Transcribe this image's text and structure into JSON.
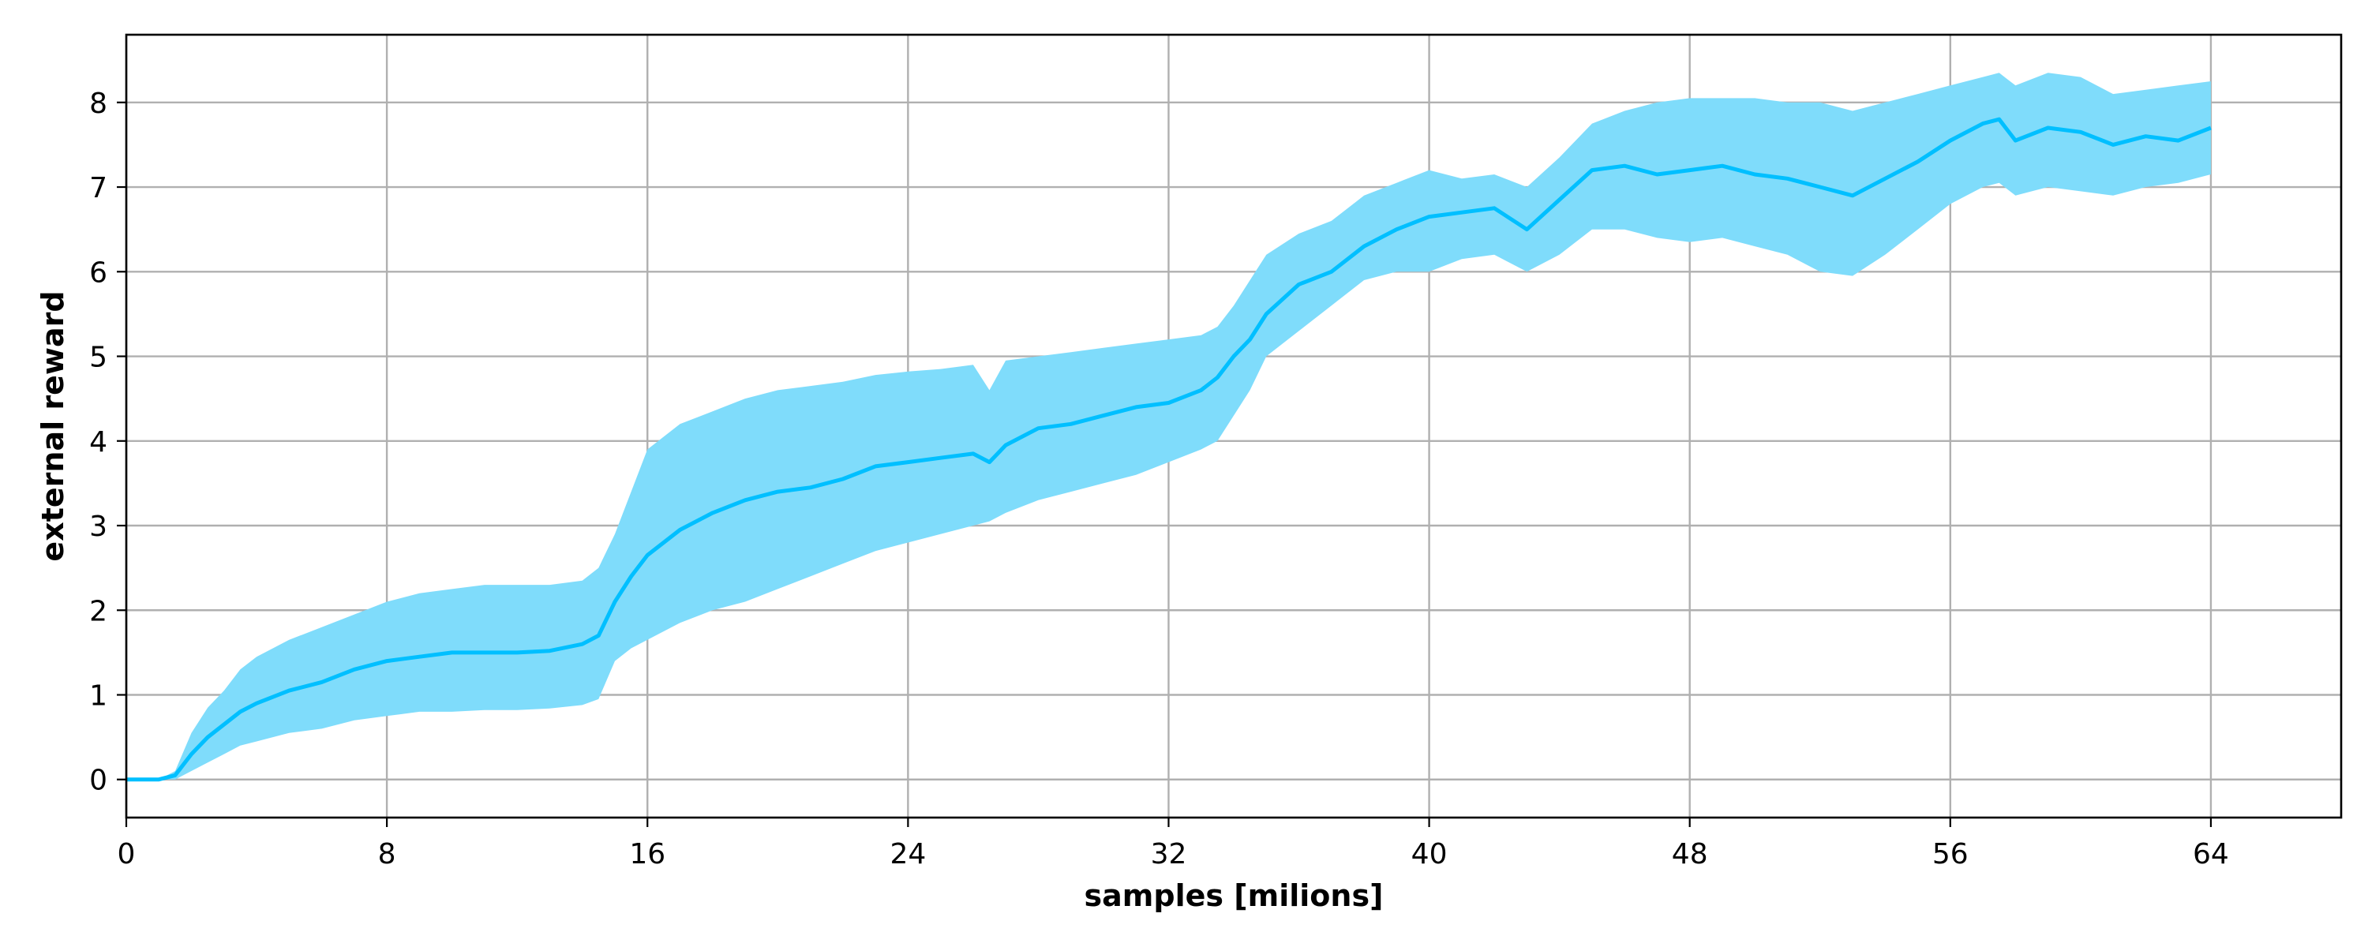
{
  "chart_data": {
    "type": "area",
    "xlabel": "samples [milions]",
    "ylabel": "external reward",
    "xlim": [
      0,
      68
    ],
    "ylim": [
      -0.45,
      8.8
    ],
    "xticks": [
      0,
      8,
      16,
      24,
      32,
      40,
      48,
      56,
      64
    ],
    "yticks": [
      0,
      1,
      2,
      3,
      4,
      5,
      6,
      7,
      8
    ],
    "grid": true,
    "line_color": "#00bfff",
    "band_color": "#7fdcfb",
    "series": [
      {
        "x": [
          0,
          1,
          1.5,
          2,
          2.5,
          3,
          3.5,
          4,
          5,
          6,
          7,
          8,
          9,
          10,
          11,
          12,
          13,
          14,
          14.5,
          15,
          15.5,
          16,
          17,
          18,
          19,
          20,
          21,
          22,
          23,
          24,
          25,
          26,
          26.5,
          27,
          28,
          29,
          30,
          31,
          32,
          33,
          33.5,
          34,
          34.5,
          35,
          36,
          37,
          38,
          39,
          40,
          41,
          42,
          43,
          44,
          45,
          46,
          47,
          48,
          49,
          50,
          51,
          52,
          53,
          54,
          55,
          56,
          57,
          57.5,
          58,
          59,
          60,
          61,
          62,
          63,
          64
        ],
        "mean": [
          0,
          0,
          0.05,
          0.3,
          0.5,
          0.65,
          0.8,
          0.9,
          1.05,
          1.15,
          1.3,
          1.4,
          1.45,
          1.5,
          1.5,
          1.5,
          1.52,
          1.6,
          1.7,
          2.1,
          2.4,
          2.65,
          2.95,
          3.15,
          3.3,
          3.4,
          3.45,
          3.55,
          3.7,
          3.75,
          3.8,
          3.85,
          3.75,
          3.95,
          4.15,
          4.2,
          4.3,
          4.4,
          4.45,
          4.6,
          4.75,
          5.0,
          5.2,
          5.5,
          5.85,
          6.0,
          6.3,
          6.5,
          6.65,
          6.7,
          6.75,
          6.5,
          6.85,
          7.2,
          7.25,
          7.15,
          7.2,
          7.25,
          7.15,
          7.1,
          7.0,
          6.9,
          7.1,
          7.3,
          7.55,
          7.75,
          7.8,
          7.55,
          7.7,
          7.65,
          7.5,
          7.6,
          7.55,
          7.7
        ],
        "lower": [
          0,
          0,
          0,
          0.1,
          0.2,
          0.3,
          0.4,
          0.45,
          0.55,
          0.6,
          0.7,
          0.75,
          0.8,
          0.8,
          0.82,
          0.82,
          0.84,
          0.88,
          0.95,
          1.4,
          1.55,
          1.65,
          1.85,
          2.0,
          2.1,
          2.25,
          2.4,
          2.55,
          2.7,
          2.8,
          2.9,
          3.0,
          3.05,
          3.15,
          3.3,
          3.4,
          3.5,
          3.6,
          3.75,
          3.9,
          4.0,
          4.3,
          4.6,
          5.0,
          5.3,
          5.6,
          5.9,
          6.0,
          6.0,
          6.15,
          6.2,
          6.0,
          6.2,
          6.5,
          6.5,
          6.4,
          6.35,
          6.4,
          6.3,
          6.2,
          6.0,
          5.95,
          6.2,
          6.5,
          6.8,
          7.0,
          7.05,
          6.9,
          7.0,
          6.95,
          6.9,
          7.0,
          7.05,
          7.15
        ],
        "upper": [
          0,
          0,
          0.1,
          0.55,
          0.85,
          1.05,
          1.3,
          1.45,
          1.65,
          1.8,
          1.95,
          2.1,
          2.2,
          2.25,
          2.3,
          2.3,
          2.3,
          2.35,
          2.5,
          2.9,
          3.4,
          3.9,
          4.2,
          4.35,
          4.5,
          4.6,
          4.65,
          4.7,
          4.78,
          4.82,
          4.85,
          4.9,
          4.6,
          4.95,
          5.0,
          5.05,
          5.1,
          5.15,
          5.2,
          5.25,
          5.35,
          5.6,
          5.9,
          6.2,
          6.45,
          6.6,
          6.9,
          7.05,
          7.2,
          7.1,
          7.15,
          7.0,
          7.35,
          7.75,
          7.9,
          8.0,
          8.05,
          8.05,
          8.05,
          8.0,
          8.0,
          7.9,
          8.0,
          8.1,
          8.2,
          8.3,
          8.35,
          8.2,
          8.35,
          8.3,
          8.1,
          8.15,
          8.2,
          8.25
        ]
      }
    ]
  }
}
